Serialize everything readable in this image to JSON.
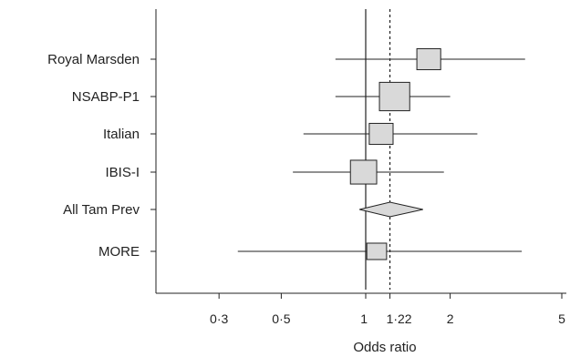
{
  "chart_data": {
    "type": "forest",
    "title": "",
    "xlabel": "Odds ratio",
    "ylabel": "",
    "x_scale": "log",
    "xlim": [
      0.2,
      5.3
    ],
    "grid": false,
    "null_line": 1,
    "pooled_line": 1.22,
    "x_ticks": [
      {
        "value": 0.3,
        "label": "0·3"
      },
      {
        "value": 0.5,
        "label": "0·5"
      },
      {
        "value": 1,
        "label": "1"
      },
      {
        "value": 1.22,
        "label": "1·22"
      },
      {
        "value": 2,
        "label": "2"
      },
      {
        "value": 5,
        "label": "5"
      }
    ],
    "studies": [
      {
        "name": "Royal Marsden",
        "or": 1.7,
        "ci_low": 0.78,
        "ci_high": 3.7,
        "weight": 0.6
      },
      {
        "name": "NSABP-P1",
        "or": 1.3,
        "ci_low": 0.78,
        "ci_high": 2.0,
        "weight": 1.0
      },
      {
        "name": "Italian",
        "or": 1.15,
        "ci_low": 0.6,
        "ci_high": 2.5,
        "weight": 0.6
      },
      {
        "name": "IBIS-I",
        "or": 1.0,
        "ci_low": 0.55,
        "ci_high": 1.9,
        "weight": 0.75
      },
      {
        "name": "MORE",
        "or": 1.1,
        "ci_low": 0.35,
        "ci_high": 3.6,
        "weight": 0.35
      }
    ],
    "pooled": {
      "name": "All Tam Prev",
      "or": 1.22,
      "ci_low": 0.95,
      "ci_high": 1.6
    }
  }
}
